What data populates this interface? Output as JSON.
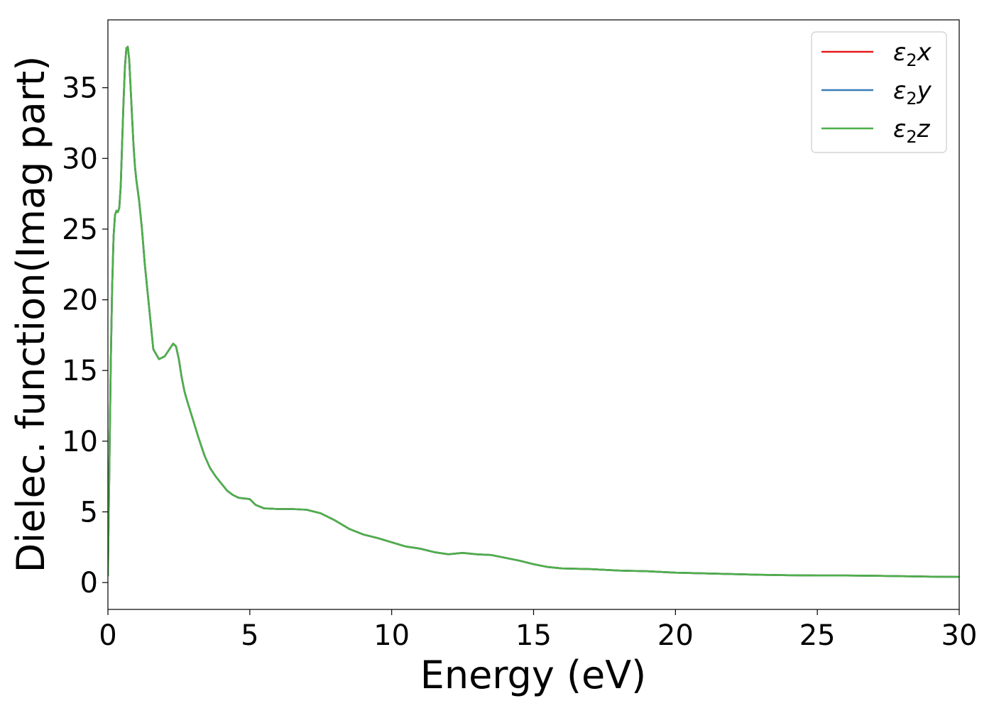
{
  "chart_data": {
    "type": "line",
    "title": "",
    "xlabel": "Energy (eV)",
    "ylabel": "Dielec. function(Imag part)",
    "xlim": [
      0,
      30
    ],
    "ylim": [
      -1.9,
      39.8
    ],
    "xticks": [
      0,
      5,
      10,
      15,
      20,
      25,
      30
    ],
    "yticks": [
      0,
      5,
      10,
      15,
      20,
      25,
      30,
      35
    ],
    "grid": false,
    "legend_position": "top-right",
    "series": [
      {
        "name_base": "ε",
        "name_sub": "2",
        "name_suffix": "x",
        "color": "#e41a1c",
        "x": [
          0.0,
          0.05,
          0.1,
          0.15,
          0.2,
          0.25,
          0.3,
          0.35,
          0.4,
          0.45,
          0.5,
          0.55,
          0.6,
          0.65,
          0.7,
          0.75,
          0.8,
          0.85,
          0.9,
          0.95,
          1.0,
          1.1,
          1.2,
          1.3,
          1.4,
          1.5,
          1.6,
          1.8,
          2.0,
          2.1,
          2.2,
          2.3,
          2.4,
          2.5,
          2.6,
          2.7,
          2.8,
          3.0,
          3.2,
          3.4,
          3.6,
          3.8,
          4.0,
          4.2,
          4.4,
          4.6,
          4.8,
          5.0,
          5.2,
          5.5,
          6.0,
          6.5,
          7.0,
          7.5,
          8.0,
          8.5,
          9.0,
          9.5,
          10.0,
          10.5,
          11.0,
          11.5,
          12.0,
          12.5,
          13.0,
          13.5,
          14.0,
          14.5,
          15.0,
          15.5,
          16.0,
          17.0,
          18.0,
          19.0,
          20.0,
          21.0,
          22.0,
          23.0,
          24.0,
          25.0,
          26.0,
          27.0,
          28.0,
          29.0,
          30.0
        ],
        "y": [
          0.5,
          8.0,
          15.5,
          21.0,
          24.5,
          26.0,
          26.3,
          26.2,
          26.5,
          28.0,
          31.0,
          34.0,
          36.5,
          37.8,
          37.9,
          37.0,
          35.0,
          33.0,
          31.0,
          29.5,
          28.5,
          27.0,
          25.0,
          22.5,
          20.5,
          18.5,
          16.5,
          15.8,
          16.0,
          16.3,
          16.6,
          16.9,
          16.7,
          15.8,
          14.5,
          13.5,
          12.8,
          11.5,
          10.2,
          9.0,
          8.1,
          7.5,
          7.0,
          6.5,
          6.2,
          6.0,
          5.95,
          5.9,
          5.5,
          5.25,
          5.2,
          5.2,
          5.15,
          4.9,
          4.4,
          3.8,
          3.4,
          3.15,
          2.85,
          2.55,
          2.4,
          2.15,
          2.0,
          2.1,
          2.0,
          1.95,
          1.75,
          1.55,
          1.3,
          1.1,
          1.0,
          0.95,
          0.85,
          0.8,
          0.7,
          0.65,
          0.6,
          0.55,
          0.52,
          0.5,
          0.5,
          0.48,
          0.45,
          0.42,
          0.4
        ]
      },
      {
        "name_base": "ε",
        "name_sub": "2",
        "name_suffix": "y",
        "color": "#377eb8",
        "x": [
          0.0,
          0.05,
          0.1,
          0.15,
          0.2,
          0.25,
          0.3,
          0.35,
          0.4,
          0.45,
          0.5,
          0.55,
          0.6,
          0.65,
          0.7,
          0.75,
          0.8,
          0.85,
          0.9,
          0.95,
          1.0,
          1.1,
          1.2,
          1.3,
          1.4,
          1.5,
          1.6,
          1.8,
          2.0,
          2.1,
          2.2,
          2.3,
          2.4,
          2.5,
          2.6,
          2.7,
          2.8,
          3.0,
          3.2,
          3.4,
          3.6,
          3.8,
          4.0,
          4.2,
          4.4,
          4.6,
          4.8,
          5.0,
          5.2,
          5.5,
          6.0,
          6.5,
          7.0,
          7.5,
          8.0,
          8.5,
          9.0,
          9.5,
          10.0,
          10.5,
          11.0,
          11.5,
          12.0,
          12.5,
          13.0,
          13.5,
          14.0,
          14.5,
          15.0,
          15.5,
          16.0,
          17.0,
          18.0,
          19.0,
          20.0,
          21.0,
          22.0,
          23.0,
          24.0,
          25.0,
          26.0,
          27.0,
          28.0,
          29.0,
          30.0
        ],
        "y": [
          0.5,
          8.0,
          15.5,
          21.0,
          24.5,
          26.0,
          26.3,
          26.2,
          26.5,
          28.0,
          31.0,
          34.0,
          36.5,
          37.8,
          37.9,
          37.0,
          35.0,
          33.0,
          31.0,
          29.5,
          28.5,
          27.0,
          25.0,
          22.5,
          20.5,
          18.5,
          16.5,
          15.8,
          16.0,
          16.3,
          16.6,
          16.9,
          16.7,
          15.8,
          14.5,
          13.5,
          12.8,
          11.5,
          10.2,
          9.0,
          8.1,
          7.5,
          7.0,
          6.5,
          6.2,
          6.0,
          5.95,
          5.9,
          5.5,
          5.25,
          5.2,
          5.2,
          5.15,
          4.9,
          4.4,
          3.8,
          3.4,
          3.15,
          2.85,
          2.55,
          2.4,
          2.15,
          2.0,
          2.1,
          2.0,
          1.95,
          1.75,
          1.55,
          1.3,
          1.1,
          1.0,
          0.95,
          0.85,
          0.8,
          0.7,
          0.65,
          0.6,
          0.55,
          0.52,
          0.5,
          0.5,
          0.48,
          0.45,
          0.42,
          0.4
        ]
      },
      {
        "name_base": "ε",
        "name_sub": "2",
        "name_suffix": "z",
        "color": "#4daf4a",
        "x": [
          0.0,
          0.05,
          0.1,
          0.15,
          0.2,
          0.25,
          0.3,
          0.35,
          0.4,
          0.45,
          0.5,
          0.55,
          0.6,
          0.65,
          0.7,
          0.75,
          0.8,
          0.85,
          0.9,
          0.95,
          1.0,
          1.1,
          1.2,
          1.3,
          1.4,
          1.5,
          1.6,
          1.8,
          2.0,
          2.1,
          2.2,
          2.3,
          2.4,
          2.5,
          2.6,
          2.7,
          2.8,
          3.0,
          3.2,
          3.4,
          3.6,
          3.8,
          4.0,
          4.2,
          4.4,
          4.6,
          4.8,
          5.0,
          5.2,
          5.5,
          6.0,
          6.5,
          7.0,
          7.5,
          8.0,
          8.5,
          9.0,
          9.5,
          10.0,
          10.5,
          11.0,
          11.5,
          12.0,
          12.5,
          13.0,
          13.5,
          14.0,
          14.5,
          15.0,
          15.5,
          16.0,
          17.0,
          18.0,
          19.0,
          20.0,
          21.0,
          22.0,
          23.0,
          24.0,
          25.0,
          26.0,
          27.0,
          28.0,
          29.0,
          30.0
        ],
        "y": [
          0.5,
          8.0,
          15.5,
          21.0,
          24.5,
          26.0,
          26.3,
          26.2,
          26.5,
          28.0,
          31.0,
          34.0,
          36.5,
          37.8,
          37.9,
          37.0,
          35.0,
          33.0,
          31.0,
          29.5,
          28.5,
          27.0,
          25.0,
          22.5,
          20.5,
          18.5,
          16.5,
          15.8,
          16.0,
          16.3,
          16.6,
          16.9,
          16.7,
          15.8,
          14.5,
          13.5,
          12.8,
          11.5,
          10.2,
          9.0,
          8.1,
          7.5,
          7.0,
          6.5,
          6.2,
          6.0,
          5.95,
          5.9,
          5.5,
          5.25,
          5.2,
          5.2,
          5.15,
          4.9,
          4.4,
          3.8,
          3.4,
          3.15,
          2.85,
          2.55,
          2.4,
          2.15,
          2.0,
          2.1,
          2.0,
          1.95,
          1.75,
          1.55,
          1.3,
          1.1,
          1.0,
          0.95,
          0.85,
          0.8,
          0.7,
          0.65,
          0.6,
          0.55,
          0.52,
          0.5,
          0.5,
          0.48,
          0.45,
          0.42,
          0.4
        ]
      }
    ]
  }
}
